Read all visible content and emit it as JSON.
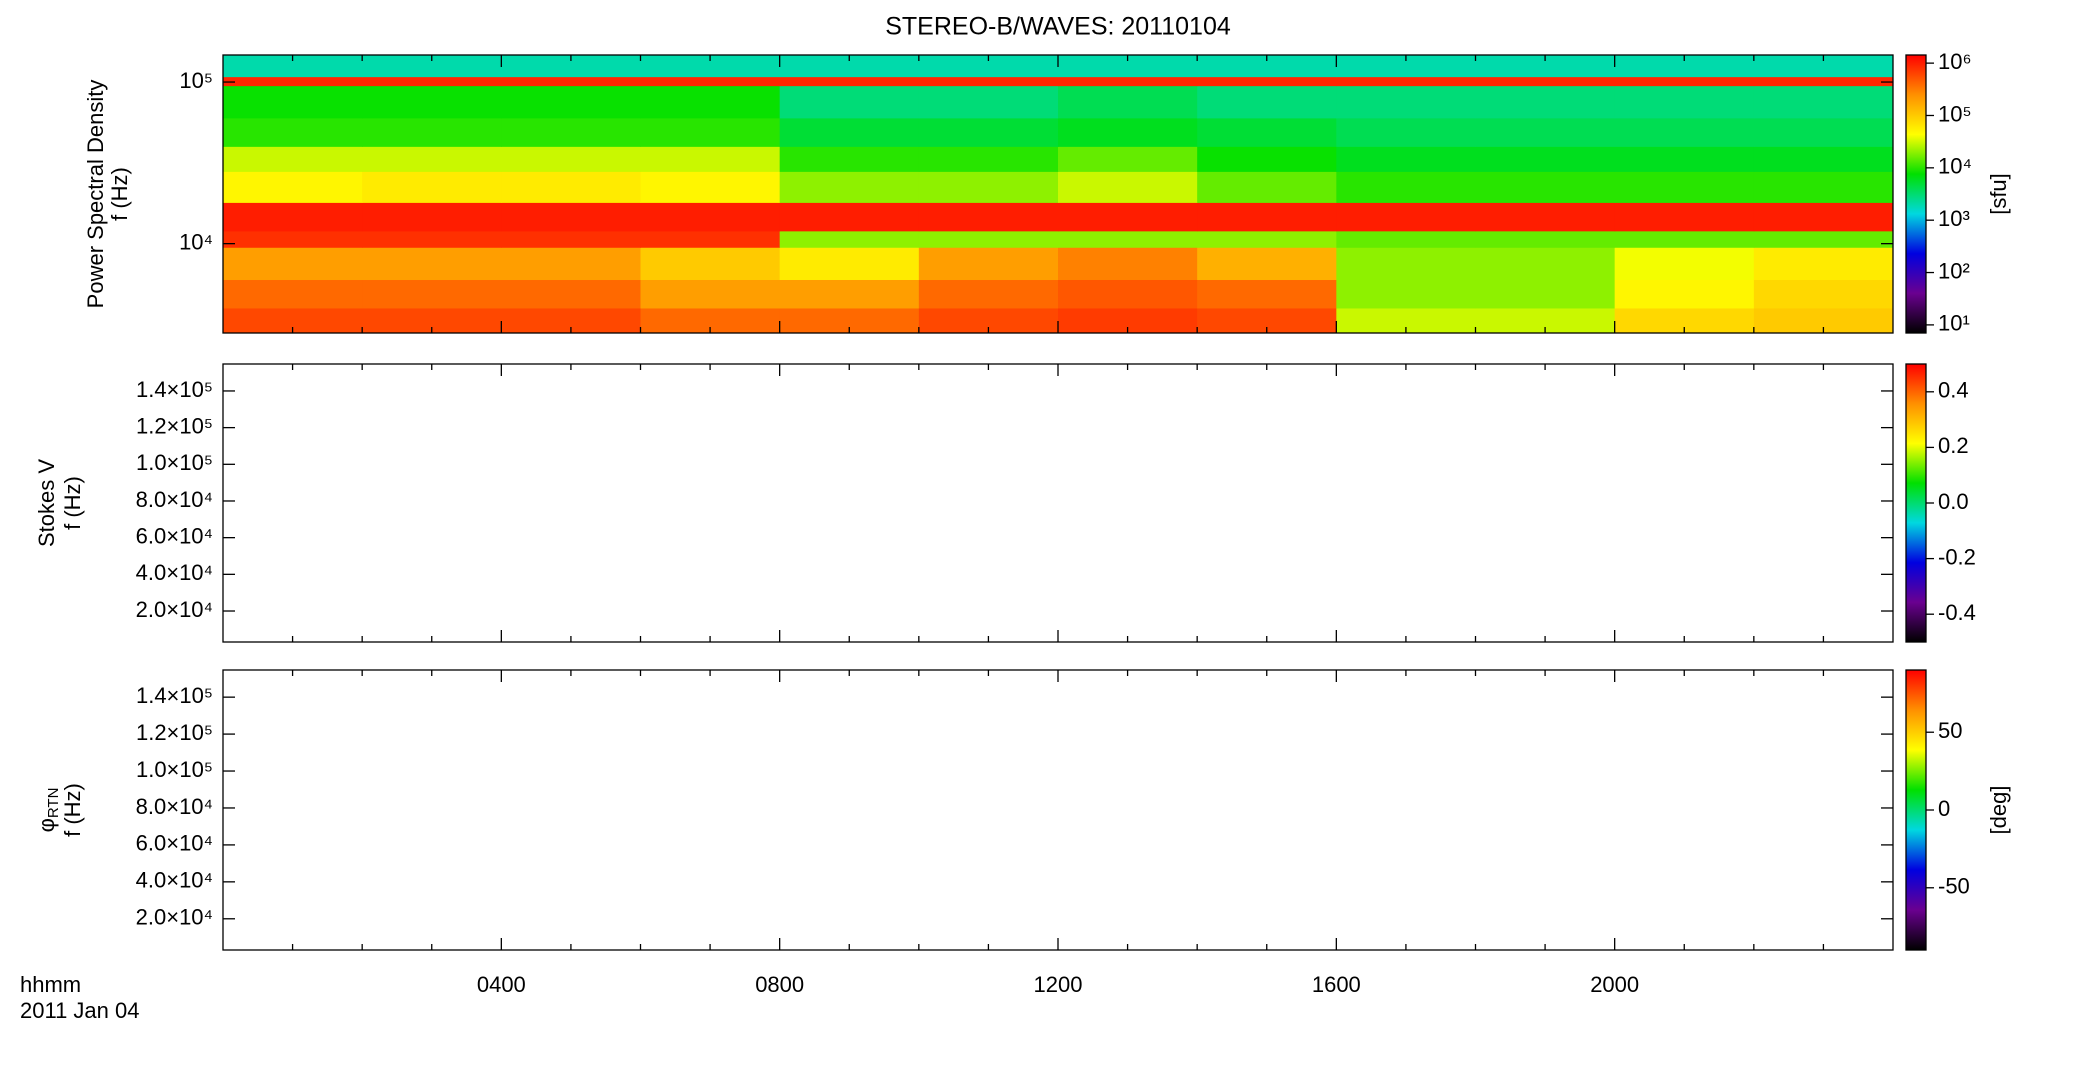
{
  "title": "STEREO-B/WAVES: 20110104",
  "x_axis": {
    "label": "hhmm",
    "date": "2011 Jan 04",
    "xlim": [
      0,
      24
    ],
    "xticks": [
      {
        "value": 4,
        "label": "0400"
      },
      {
        "value": 8,
        "label": "0800"
      },
      {
        "value": 12,
        "label": "1200"
      },
      {
        "value": 16,
        "label": "1600"
      },
      {
        "value": 20,
        "label": "2000"
      }
    ],
    "xminorticks": [
      1,
      2,
      3,
      5,
      6,
      7,
      9,
      10,
      11,
      13,
      14,
      15,
      17,
      18,
      19,
      21,
      22,
      23
    ]
  },
  "colormap": [
    "#000000",
    "#6a0090",
    "#0000e0",
    "#00d8e0",
    "#00e000",
    "#ffff00",
    "#ff9000",
    "#ff0000"
  ],
  "chart_data": [
    {
      "type": "heatmap",
      "ylabel": "Power Spectral Density",
      "ylabel2": "f (Hz)",
      "ylog": true,
      "ylim": [
        2800,
        147000
      ],
      "yticks": [
        {
          "value": 10000,
          "label": "10⁴"
        },
        {
          "value": 100000,
          "label": "10⁵"
        }
      ],
      "x_bins": [
        0,
        2,
        4,
        6,
        8,
        10,
        12,
        14,
        16,
        18,
        20,
        22,
        24
      ],
      "y_bins": [
        2800,
        4000,
        6000,
        9500,
        12000,
        18000,
        28000,
        40000,
        60000,
        95000,
        108000,
        147000
      ],
      "values": [
        [
          600000,
          600000,
          600000,
          400000,
          400000,
          600000,
          700000,
          600000,
          30000,
          30000,
          80000,
          100000
        ],
        [
          400000,
          400000,
          400000,
          200000,
          200000,
          400000,
          500000,
          400000,
          20000,
          20000,
          50000,
          80000
        ],
        [
          200000,
          200000,
          200000,
          100000,
          60000,
          200000,
          300000,
          150000,
          20000,
          20000,
          40000,
          60000
        ],
        [
          800000,
          800000,
          800000,
          800000,
          20000,
          20000,
          20000,
          20000,
          15000,
          15000,
          15000,
          15000
        ],
        [
          1000000,
          1000000,
          1000000,
          1000000,
          1000000,
          1000000,
          1000000,
          1000000,
          1000000,
          1000000,
          1000000,
          1000000
        ],
        [
          50000,
          60000,
          60000,
          50000,
          20000,
          20000,
          30000,
          15000,
          10000,
          10000,
          10000,
          10000
        ],
        [
          30000,
          30000,
          30000,
          30000,
          10000,
          10000,
          15000,
          8000,
          6000,
          6000,
          6000,
          6000
        ],
        [
          10000,
          10000,
          10000,
          10000,
          5000,
          5000,
          6000,
          5000,
          4000,
          4000,
          4000,
          4000
        ],
        [
          8000,
          8000,
          8000,
          8000,
          3000,
          3000,
          4000,
          3000,
          3000,
          3000,
          3000,
          3000
        ],
        [
          900000,
          900000,
          900000,
          900000,
          900000,
          900000,
          900000,
          900000,
          900000,
          900000,
          900000,
          900000
        ],
        [
          2000,
          2000,
          2000,
          2000,
          2000,
          2000,
          2000,
          2000,
          2000,
          2000,
          2000,
          2000
        ]
      ],
      "colorbar": {
        "label": "[sfu]",
        "log": true,
        "clim": [
          7,
          1430000
        ],
        "ticks": [
          {
            "value": 10,
            "label": "10¹"
          },
          {
            "value": 100,
            "label": "10²"
          },
          {
            "value": 1000,
            "label": "10³"
          },
          {
            "value": 10000,
            "label": "10⁴"
          },
          {
            "value": 100000,
            "label": "10⁵"
          },
          {
            "value": 1000000,
            "label": "10⁶"
          }
        ]
      }
    },
    {
      "type": "heatmap",
      "ylabel": "Stokes V",
      "ylabel2": "f (Hz)",
      "ylog": false,
      "ylim": [
        3100,
        154700
      ],
      "yticks": [
        {
          "value": 20000,
          "label": "2.0×10⁴"
        },
        {
          "value": 40000,
          "label": "4.0×10⁴"
        },
        {
          "value": 60000,
          "label": "6.0×10⁴"
        },
        {
          "value": 80000,
          "label": "8.0×10⁴"
        },
        {
          "value": 100000,
          "label": "1.0×10⁵"
        },
        {
          "value": 120000,
          "label": "1.2×10⁵"
        },
        {
          "value": 140000,
          "label": "1.4×10⁵"
        }
      ],
      "colorbar": {
        "log": false,
        "clim": [
          -0.5,
          0.5
        ],
        "ticks": [
          -0.4,
          -0.2,
          {
            "value": 0,
            "label": "0.0"
          },
          0.2,
          0.4
        ]
      }
    },
    {
      "type": "heatmap",
      "ylabel": "φ",
      "ylabel_sub": "RTN",
      "ylabel2": "f (Hz)",
      "ylog": false,
      "ylim": [
        3100,
        154700
      ],
      "yticks": [
        {
          "value": 20000,
          "label": "2.0×10⁴"
        },
        {
          "value": 40000,
          "label": "4.0×10⁴"
        },
        {
          "value": 60000,
          "label": "6.0×10⁴"
        },
        {
          "value": 80000,
          "label": "8.0×10⁴"
        },
        {
          "value": 100000,
          "label": "1.0×10⁵"
        },
        {
          "value": 120000,
          "label": "1.2×10⁵"
        },
        {
          "value": 140000,
          "label": "1.4×10⁵"
        }
      ],
      "colorbar": {
        "label": "[deg]",
        "log": false,
        "clim": [
          -90,
          90
        ],
        "ticks": [
          -50,
          0,
          50
        ]
      }
    }
  ]
}
